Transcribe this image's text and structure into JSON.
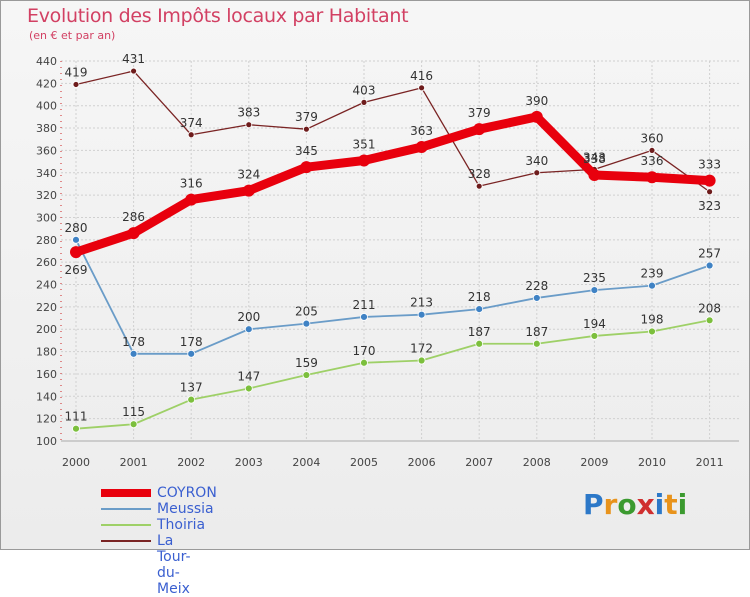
{
  "header": {
    "title": "Evolution des Impôts locaux par Habitant",
    "subtitle": "(en € et par an)"
  },
  "colors": {
    "title": "#d24063",
    "grid": "#d0d0d0",
    "axis_tick": "#cc2222"
  },
  "logo": {
    "letters": [
      "P",
      "r",
      "o",
      "x",
      "i",
      "t",
      "i"
    ],
    "colors": [
      "#2c78c8",
      "#e8931c",
      "#3b9a2f",
      "#d02f2f",
      "#2c78c8",
      "#e8931c",
      "#3b9a2f"
    ]
  },
  "chart_data": {
    "type": "line",
    "title": "Evolution des Impôts locaux par Habitant",
    "subtitle": "(en € et par an)",
    "xlabel": "",
    "ylabel": "",
    "ylim": [
      100,
      440
    ],
    "yticks": [
      100,
      120,
      140,
      160,
      180,
      200,
      220,
      240,
      260,
      280,
      300,
      320,
      340,
      360,
      380,
      400,
      420,
      440
    ],
    "categories": [
      "2000",
      "2001",
      "2002",
      "2003",
      "2004",
      "2005",
      "2006",
      "2007",
      "2008",
      "2009",
      "2010",
      "2011"
    ],
    "grid": true,
    "legend": "bottom-left",
    "series": [
      {
        "name": "La Tour-du-Meix",
        "color": "#7a2424",
        "dot": "#6e1c1c",
        "width": 1.3,
        "dotSize": 3,
        "labels_above": [
          true,
          true,
          true,
          true,
          true,
          true,
          true,
          true,
          true,
          true,
          true,
          false
        ],
        "values": [
          419,
          431,
          374,
          383,
          379,
          403,
          416,
          328,
          340,
          343,
          360,
          323
        ]
      },
      {
        "name": "Thoiria",
        "color": "#9ed067",
        "dot": "#7cbf3d",
        "width": 1.8,
        "dotSize": 3.5,
        "labels_above": [
          true,
          true,
          true,
          true,
          true,
          true,
          true,
          true,
          true,
          true,
          true,
          true
        ],
        "values": [
          111,
          115,
          137,
          147,
          159,
          170,
          172,
          187,
          187,
          194,
          198,
          208
        ]
      },
      {
        "name": "Meussia",
        "color": "#6a9cc8",
        "dot": "#3f82c4",
        "width": 1.8,
        "dotSize": 3.5,
        "labels_above": [
          true,
          true,
          true,
          true,
          true,
          true,
          true,
          true,
          true,
          true,
          true,
          true
        ],
        "values": [
          280,
          178,
          178,
          200,
          205,
          211,
          213,
          218,
          228,
          235,
          239,
          257
        ]
      },
      {
        "name": "COYRON",
        "color": "#e8000d",
        "dot": "#e8000d",
        "width": 9,
        "dotSize": 6,
        "labels_above": [
          false,
          true,
          true,
          true,
          true,
          true,
          true,
          true,
          true,
          true,
          true,
          true
        ],
        "values": [
          269,
          286,
          316,
          324,
          345,
          351,
          363,
          379,
          390,
          338,
          336,
          333
        ]
      }
    ],
    "legend_entries": [
      {
        "name": "COYRON",
        "color": "#e8000d",
        "text_color": "#3a5fd0",
        "thickness": 8
      },
      {
        "name": "Meussia",
        "color": "#6a9cc8",
        "text_color": "#3a5fd0",
        "thickness": 2
      },
      {
        "name": "Thoiria",
        "color": "#9ed067",
        "text_color": "#3a5fd0",
        "thickness": 2
      },
      {
        "name": "La Tour-du-Meix",
        "color": "#7a2424",
        "text_color": "#3a5fd0",
        "thickness": 2
      }
    ]
  }
}
